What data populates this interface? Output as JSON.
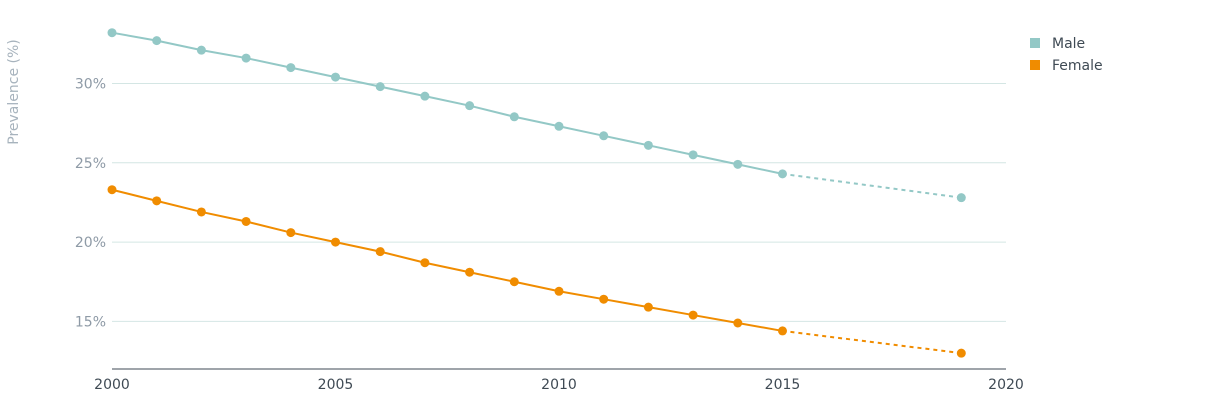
{
  "chart_data": {
    "type": "line",
    "ylabel": "Prevalence (%)",
    "xlabel": "",
    "xlim": [
      2000,
      2020
    ],
    "ylim": [
      12,
      34
    ],
    "x_ticks": [
      2000,
      2005,
      2010,
      2015,
      2020
    ],
    "y_ticks": [
      15,
      20,
      25,
      30
    ],
    "y_tick_labels": [
      "15%",
      "20%",
      "25%",
      "30%"
    ],
    "grid": "horizontal",
    "legend_position": "top-right",
    "series": [
      {
        "name": "Male",
        "color": "#93c8c6",
        "x": [
          2000,
          2001,
          2002,
          2003,
          2004,
          2005,
          2006,
          2007,
          2008,
          2009,
          2010,
          2011,
          2012,
          2013,
          2014,
          2015
        ],
        "values": [
          33.2,
          32.7,
          32.1,
          31.6,
          31.0,
          30.4,
          29.8,
          29.2,
          28.6,
          27.9,
          27.3,
          26.7,
          26.1,
          25.5,
          24.9,
          24.3
        ],
        "projection": {
          "x": [
            2015,
            2019
          ],
          "values": [
            24.3,
            22.8
          ]
        }
      },
      {
        "name": "Female",
        "color": "#f08c00",
        "x": [
          2000,
          2001,
          2002,
          2003,
          2004,
          2005,
          2006,
          2007,
          2008,
          2009,
          2010,
          2011,
          2012,
          2013,
          2014,
          2015
        ],
        "values": [
          23.3,
          22.6,
          21.9,
          21.3,
          20.6,
          20.0,
          19.4,
          18.7,
          18.1,
          17.5,
          16.9,
          16.4,
          15.9,
          15.4,
          14.9,
          14.4
        ],
        "projection": {
          "x": [
            2015,
            2019
          ],
          "values": [
            14.4,
            13.0
          ]
        }
      }
    ]
  }
}
